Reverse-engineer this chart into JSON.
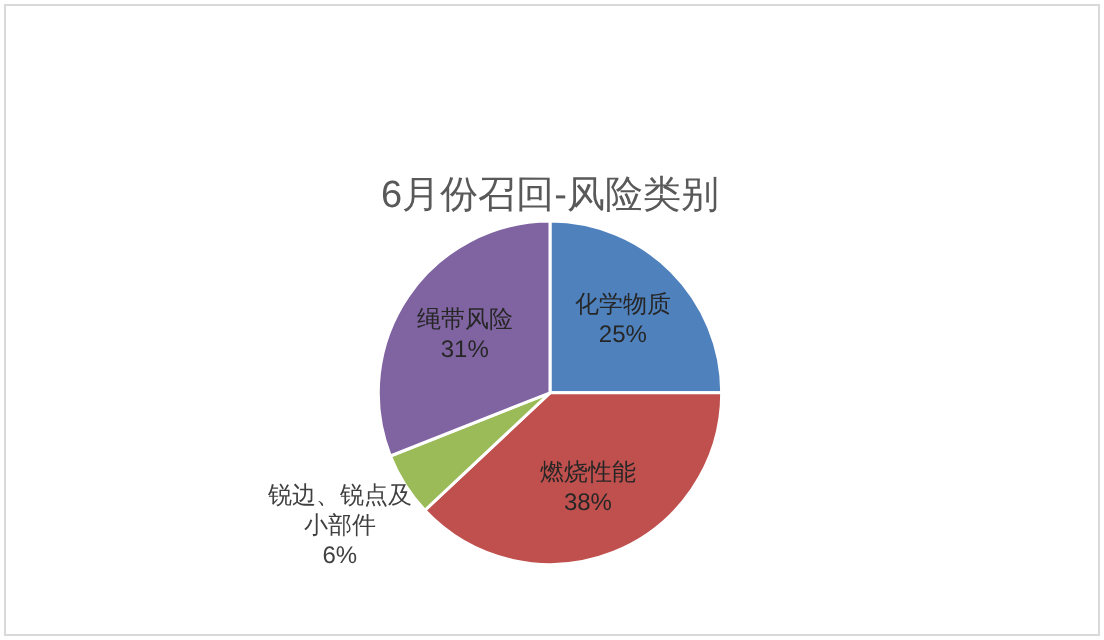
{
  "chart_data": {
    "type": "pie",
    "title": "6月份召回-风险类别",
    "categories": [
      "化学物质",
      "燃烧性能",
      "锐边、锐点及小部件",
      "绳带风险"
    ],
    "values": [
      25,
      38,
      6,
      31
    ],
    "colors": [
      "#4f81bd",
      "#c0504d",
      "#9bbb59",
      "#8064a2"
    ],
    "value_labels": [
      "25%",
      "38%",
      "6%",
      "31%"
    ],
    "legend": false
  }
}
